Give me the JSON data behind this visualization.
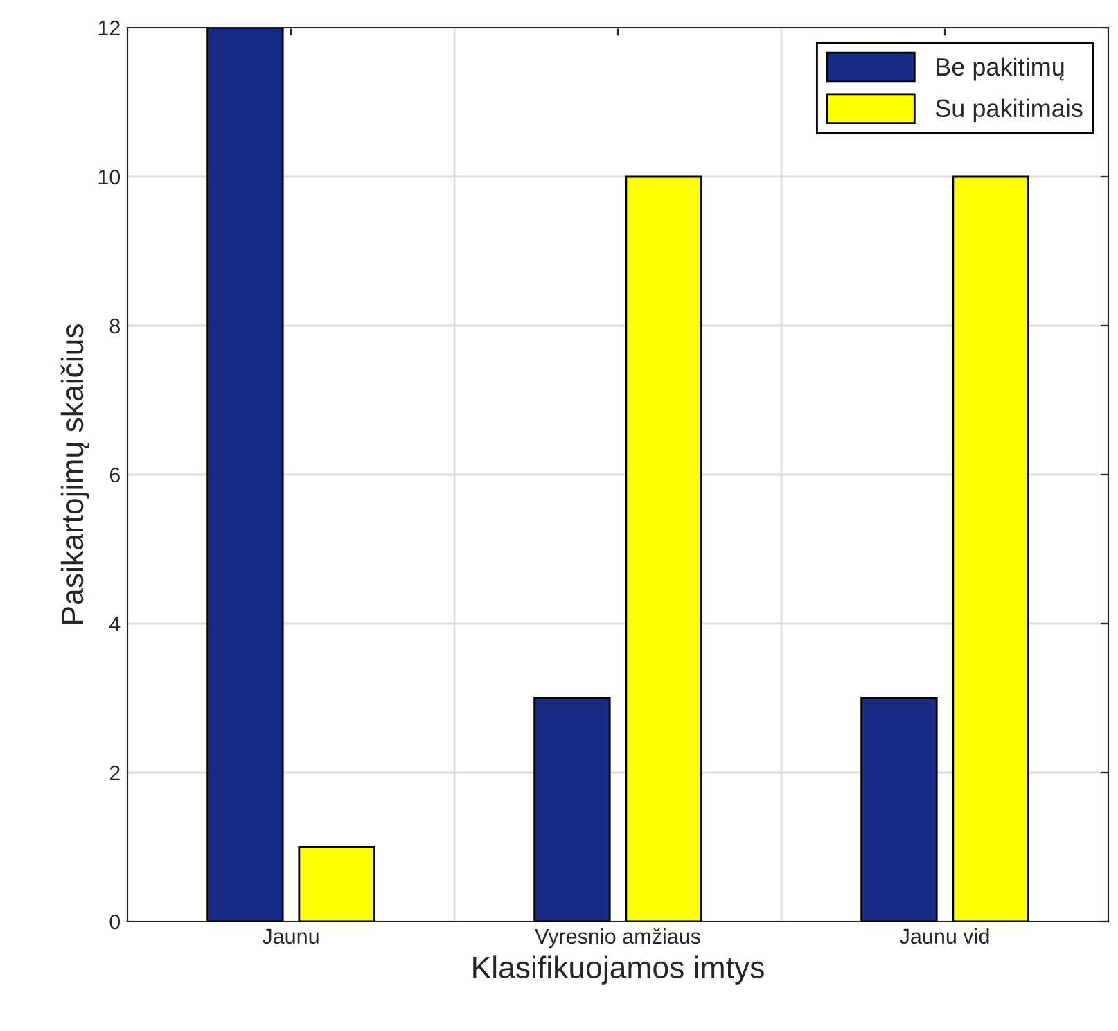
{
  "chart_data": {
    "type": "bar",
    "xlabel": "Klasifikuojamos imtys",
    "ylabel": "Pasikartojimų skaičius",
    "categories": [
      "Jaunu",
      "Vyresnio amžiaus",
      "Jaunu vid"
    ],
    "series": [
      {
        "name": "Be pakitimų",
        "color": "#172a85",
        "values": [
          12,
          3,
          3
        ]
      },
      {
        "name": "Su pakitimais",
        "color": "#ffff00",
        "values": [
          1,
          10,
          10
        ]
      }
    ],
    "ylim": [
      0,
      12
    ],
    "yticks": [
      0,
      2,
      4,
      6,
      8,
      10,
      12
    ],
    "grid": true,
    "legend": "top right"
  }
}
